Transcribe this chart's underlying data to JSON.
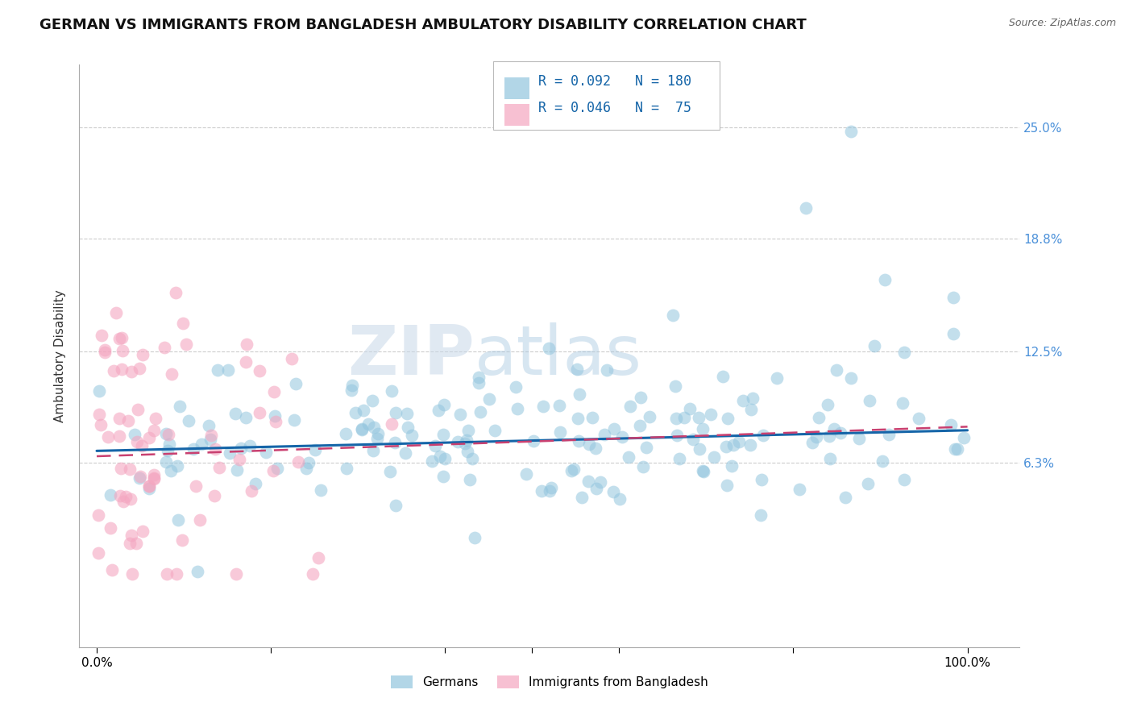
{
  "title": "GERMAN VS IMMIGRANTS FROM BANGLADESH AMBULATORY DISABILITY CORRELATION CHART",
  "source": "Source: ZipAtlas.com",
  "ylabel": "Ambulatory Disability",
  "ytick_labels": [
    "25.0%",
    "18.8%",
    "12.5%",
    "6.3%"
  ],
  "ytick_values": [
    0.25,
    0.188,
    0.125,
    0.063
  ],
  "ylim": [
    -0.04,
    0.285
  ],
  "xlim": [
    -0.02,
    1.06
  ],
  "legend_blue_r": "0.092",
  "legend_blue_n": "180",
  "legend_pink_r": "0.046",
  "legend_pink_n": "75",
  "legend_label_blue": "Germans",
  "legend_label_pink": "Immigrants from Bangladesh",
  "blue_color": "#92c5de",
  "pink_color": "#f4a6c0",
  "trend_blue_color": "#1565a8",
  "trend_pink_color": "#c94070",
  "background_color": "#ffffff",
  "grid_color": "#cccccc",
  "watermark_zip": "ZIP",
  "watermark_atlas": "atlas",
  "title_fontsize": 13,
  "axis_label_fontsize": 11,
  "tick_label_fontsize": 11,
  "right_tick_color": "#4a90d9"
}
